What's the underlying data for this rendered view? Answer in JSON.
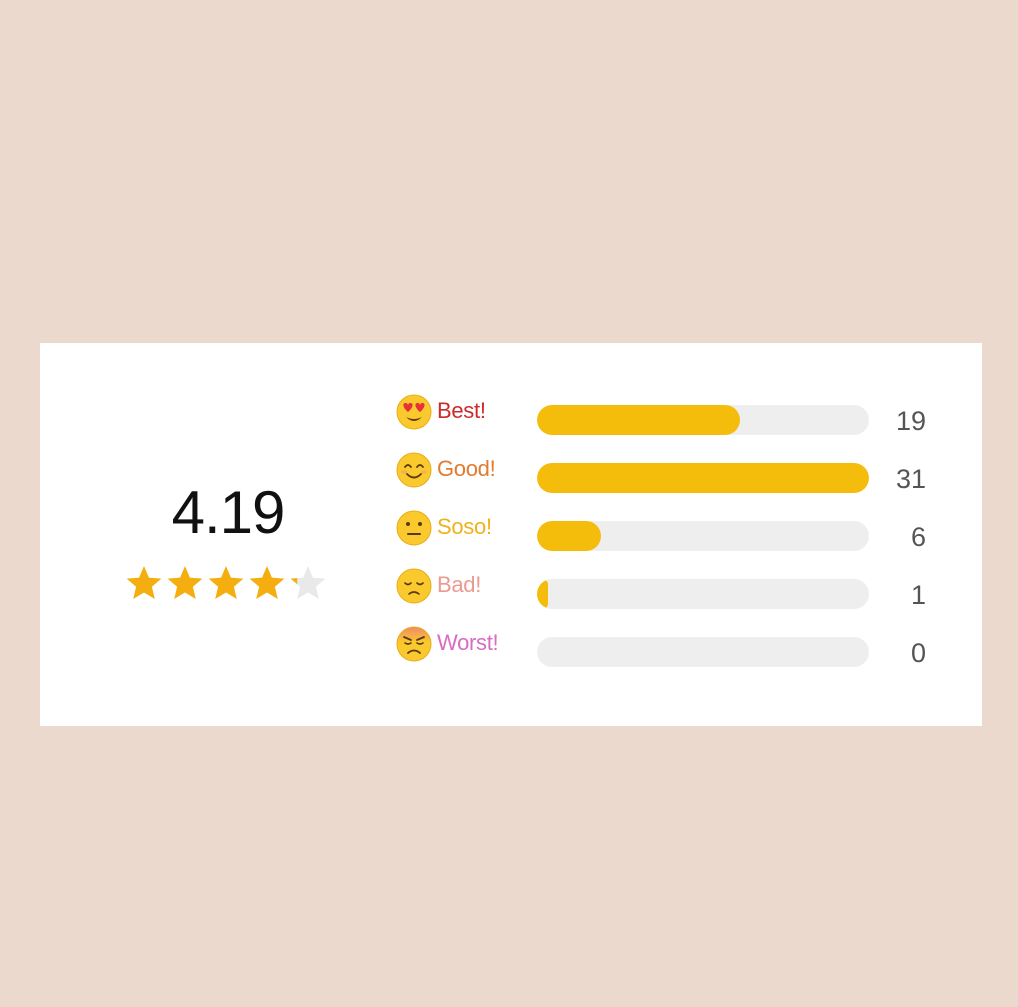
{
  "summary": {
    "average": "4.19",
    "stars_filled": 4,
    "stars_partial_fraction": 0.19,
    "stars_total": 5
  },
  "colors": {
    "page_bg": "#ead9cc",
    "card_bg": "#ffffff",
    "star": "#f5ae0f",
    "star_empty": "#e9e9e9",
    "bar_fill": "#f5bd0b",
    "bar_track": "#eeeeee"
  },
  "ratings": [
    {
      "label": "Best!",
      "count": "19",
      "value": 19,
      "color": "#cc2b2b",
      "icon": "heart-eyes-emoji-icon"
    },
    {
      "label": "Good!",
      "count": "31",
      "value": 31,
      "color": "#e07b2f",
      "icon": "smiling-emoji-icon"
    },
    {
      "label": "Soso!",
      "count": "6",
      "value": 6,
      "color": "#efb21d",
      "icon": "neutral-emoji-icon"
    },
    {
      "label": "Bad!",
      "count": "1",
      "value": 1,
      "color": "#eb9a92",
      "icon": "sad-emoji-icon"
    },
    {
      "label": "Worst!",
      "count": "0",
      "value": 0,
      "color": "#d86cc3",
      "icon": "angry-emoji-icon"
    }
  ],
  "max_value": 31
}
